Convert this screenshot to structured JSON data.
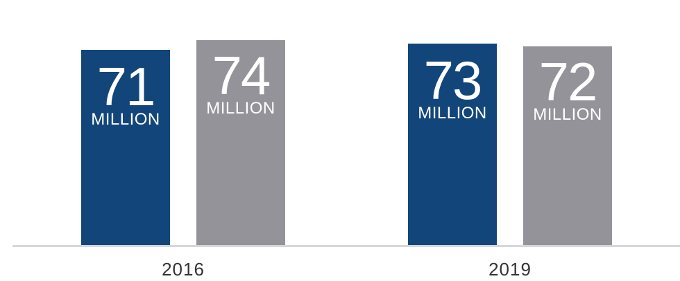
{
  "chart_data": {
    "type": "bar",
    "categories": [
      "2016",
      "2019"
    ],
    "series": [
      {
        "values": [
          71,
          73
        ],
        "label_unit": "MILLION",
        "color": "#12467a"
      },
      {
        "values": [
          74,
          72
        ],
        "label_unit": "MILLION",
        "color": "#939399"
      }
    ],
    "title": "",
    "xlabel": "",
    "ylabel": "",
    "grid": false,
    "legend": "none"
  }
}
